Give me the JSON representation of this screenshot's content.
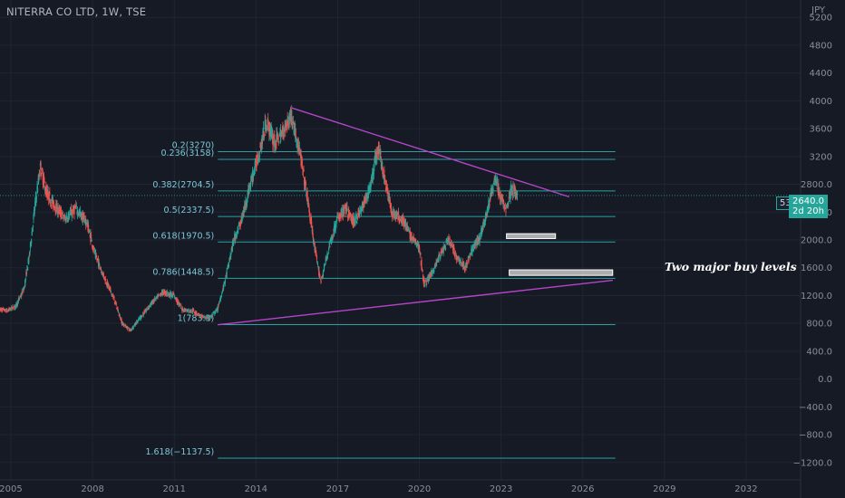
{
  "header": {
    "title": "NITERRA CO LTD, 1W, TSE",
    "currency": "JPY"
  },
  "annotation": "Two major buy levels",
  "price_marks": {
    "left_value": "5334",
    "last_price": "2640.0",
    "countdown": "2d 20h"
  },
  "colors": {
    "background": "#161a25",
    "up": "#26a69a",
    "down": "#ef5350",
    "fib_line": "#2fb8b8",
    "trendline": "#b545c8",
    "fib_text": "#7ec8d8",
    "axis_text": "#8a8e99"
  },
  "chart_data": {
    "type": "candlestick",
    "title": "NITERRA CO LTD, 1W, TSE",
    "x_axis": {
      "tick_labels": [
        "2005",
        "2008",
        "2011",
        "2014",
        "2017",
        "2020",
        "2023",
        "2026",
        "2029",
        "2032"
      ],
      "range": [
        2004.6,
        2034.0
      ]
    },
    "y_axis": {
      "unit": "JPY",
      "tick_labels": [
        "5200",
        "4800",
        "4400",
        "4000",
        "3600",
        "3200",
        "2800.0",
        "2400.0",
        "2000.0",
        "1600.0",
        "1200.0",
        "800.0",
        "400.0",
        "0.0",
        "−400.0",
        "−800.0",
        "−1200.0"
      ],
      "tick_values": [
        5200,
        4800,
        4400,
        4000,
        3600,
        3200,
        2800,
        2400,
        2000,
        1600,
        1200,
        800,
        400,
        0,
        -400,
        -800,
        -1200
      ],
      "range": [
        -1450,
        5450
      ]
    },
    "price_path": [
      [
        2004.6,
        1000
      ],
      [
        2004.9,
        980
      ],
      [
        2005.2,
        1050
      ],
      [
        2005.5,
        1300
      ],
      [
        2005.7,
        1800
      ],
      [
        2005.9,
        2500
      ],
      [
        2006.1,
        3050
      ],
      [
        2006.3,
        2700
      ],
      [
        2006.6,
        2500
      ],
      [
        2007.0,
        2300
      ],
      [
        2007.4,
        2450
      ],
      [
        2007.8,
        2250
      ],
      [
        2008.1,
        1800
      ],
      [
        2008.4,
        1500
      ],
      [
        2008.8,
        1150
      ],
      [
        2009.1,
        800
      ],
      [
        2009.4,
        700
      ],
      [
        2009.8,
        900
      ],
      [
        2010.2,
        1100
      ],
      [
        2010.6,
        1250
      ],
      [
        2011.0,
        1200
      ],
      [
        2011.3,
        1000
      ],
      [
        2011.7,
        980
      ],
      [
        2012.0,
        900
      ],
      [
        2012.3,
        870
      ],
      [
        2012.6,
        1000
      ],
      [
        2012.9,
        1450
      ],
      [
        2013.2,
        2000
      ],
      [
        2013.5,
        2300
      ],
      [
        2013.8,
        2800
      ],
      [
        2014.1,
        3200
      ],
      [
        2014.4,
        3700
      ],
      [
        2014.7,
        3400
      ],
      [
        2015.0,
        3550
      ],
      [
        2015.3,
        3800
      ],
      [
        2015.6,
        3300
      ],
      [
        2015.9,
        2600
      ],
      [
        2016.2,
        1800
      ],
      [
        2016.4,
        1400
      ],
      [
        2016.7,
        1900
      ],
      [
        2017.0,
        2300
      ],
      [
        2017.3,
        2450
      ],
      [
        2017.6,
        2250
      ],
      [
        2017.9,
        2450
      ],
      [
        2018.2,
        2750
      ],
      [
        2018.5,
        3350
      ],
      [
        2018.7,
        2950
      ],
      [
        2019.0,
        2400
      ],
      [
        2019.4,
        2300
      ],
      [
        2019.7,
        2050
      ],
      [
        2020.0,
        1900
      ],
      [
        2020.2,
        1350
      ],
      [
        2020.5,
        1550
      ],
      [
        2020.8,
        1800
      ],
      [
        2021.1,
        2000
      ],
      [
        2021.4,
        1750
      ],
      [
        2021.7,
        1600
      ],
      [
        2022.0,
        1900
      ],
      [
        2022.2,
        2000
      ],
      [
        2022.5,
        2400
      ],
      [
        2022.8,
        2900
      ],
      [
        2023.0,
        2600
      ],
      [
        2023.2,
        2450
      ],
      [
        2023.4,
        2750
      ],
      [
        2023.6,
        2640
      ]
    ],
    "fibonacci": {
      "levels": [
        {
          "ratio": "0.2",
          "value": 3270,
          "label": "0.2(3270)"
        },
        {
          "ratio": "0.236",
          "value": 3158,
          "label": "0.236(3158)"
        },
        {
          "ratio": "0.382",
          "value": 2704.5,
          "label": "0.382(2704.5)"
        },
        {
          "ratio": "0.5",
          "value": 2337.5,
          "label": "0.5(2337.5)"
        },
        {
          "ratio": "0.618",
          "value": 1970.5,
          "label": "0.618(1970.5)"
        },
        {
          "ratio": "0.786",
          "value": 1448.5,
          "label": "0.786(1448.5)"
        },
        {
          "ratio": "1",
          "value": 783.3,
          "label": "1(783.3)"
        },
        {
          "ratio": "1.618",
          "value": -1137.5,
          "label": "1.618(−1137.5)"
        }
      ],
      "x_start": 2012.6,
      "x_end": 2027.2
    },
    "trendlines": [
      {
        "name": "upper",
        "from": [
          2015.3,
          3900
        ],
        "to": [
          2025.5,
          2620
        ]
      },
      {
        "name": "lower",
        "from": [
          2012.6,
          780
        ],
        "to": [
          2027.1,
          1420
        ]
      }
    ],
    "zones": [
      {
        "x": [
          2023.2,
          2025.0
        ],
        "y": [
          2020,
          2090
        ]
      },
      {
        "x": [
          2023.3,
          2027.1
        ],
        "y": [
          1490,
          1570
        ]
      }
    ],
    "last_price": 2640.0
  }
}
